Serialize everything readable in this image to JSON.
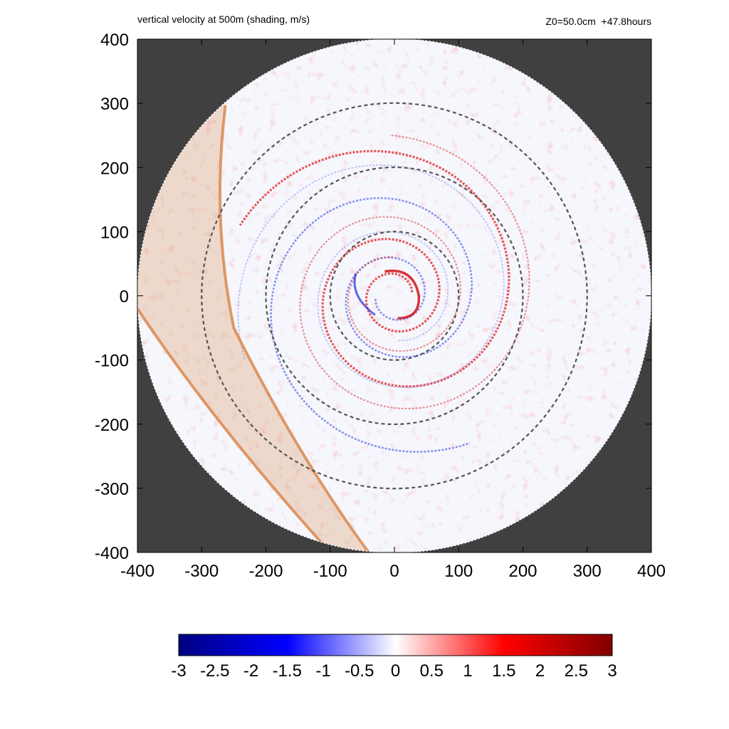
{
  "chart_data": {
    "type": "heatmap",
    "title": "vertical velocity at 500m (shading, m/s)",
    "annotation_right": "Z0=50.0cm  +47.8hours",
    "xlim": [
      -400,
      400
    ],
    "ylim": [
      -400,
      400
    ],
    "xticks": [
      -400,
      -300,
      -200,
      -100,
      0,
      100,
      200,
      300,
      400
    ],
    "yticks": [
      400,
      300,
      200,
      100,
      0,
      -100,
      -200,
      -300,
      -400
    ],
    "xtick_labels": [
      "-400",
      "-300",
      "-200",
      "-100",
      "0",
      "100",
      "200",
      "300",
      "400"
    ],
    "ytick_labels": [
      "400",
      "300",
      "200",
      "100",
      "0",
      "-100",
      "-200",
      "-300",
      "-400"
    ],
    "domain_radius": 400,
    "range_rings": [
      100,
      200,
      300
    ],
    "background_color": "#404040",
    "ring_color": "#555555",
    "band_color": "#d98a4f",
    "colorbar": {
      "range": [
        -3,
        3
      ],
      "ticks": [
        -3,
        -2.5,
        -2,
        -1.5,
        -1,
        -0.5,
        0,
        0.5,
        1,
        1.5,
        2,
        2.5,
        3
      ],
      "tick_labels": [
        "-3",
        "-2.5",
        "-2",
        "-1.5",
        "-1",
        "-0.5",
        "0",
        "0.5",
        "1",
        "1.5",
        "2",
        "2.5",
        "3"
      ],
      "colors": [
        "#000080",
        "#0000ff",
        "#ffffff",
        "#ff0000",
        "#800000"
      ]
    },
    "grid": false
  }
}
